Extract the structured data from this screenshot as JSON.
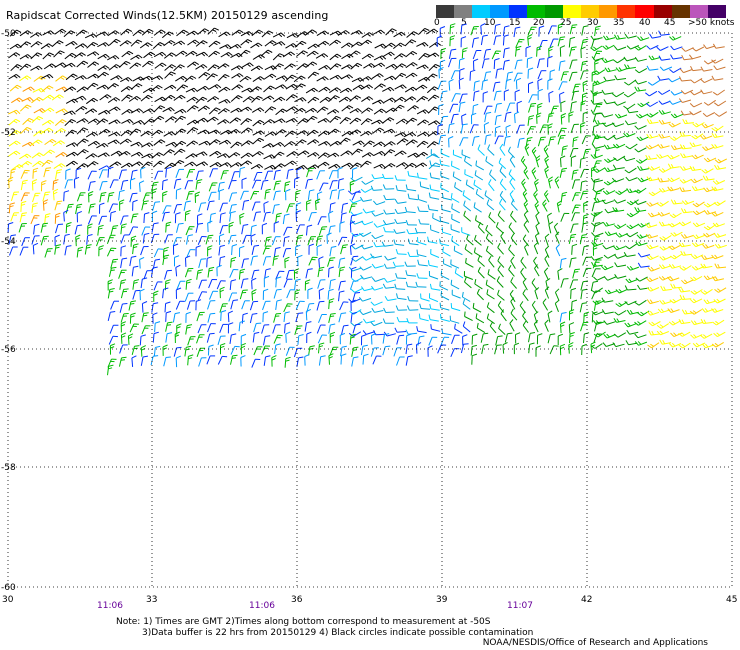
{
  "title": "Rapidscat Corrected Winds(12.5KM) 20150129 ascending",
  "legend": {
    "labels": [
      "0",
      "5",
      "10",
      "15",
      "20",
      "25",
      "30",
      "35",
      "40",
      "45",
      ">50 knots"
    ],
    "colors": [
      "#3a3a3a",
      "#808080",
      "#00ccff",
      "#0099ff",
      "#0033ff",
      "#00bb00",
      "#009900",
      "#ffff00",
      "#ffcc00",
      "#ff9900",
      "#ff3300",
      "#ff0000",
      "#990000",
      "#663300",
      "#bb55bb",
      "#440066"
    ]
  },
  "axes": {
    "lat_labels": [
      "-50",
      "-52",
      "-54",
      "-56",
      "-58",
      "-60"
    ],
    "lon_labels": [
      "30",
      "33",
      "36",
      "39",
      "42",
      "45"
    ]
  },
  "times": [
    "11:06",
    "11:06",
    "11:07"
  ],
  "notes": {
    "line1": "Note: 1) Times are GMT 2)Times along bottom correspond to measurement at -50S",
    "line2": "3)Data buffer is 22 hrs from 20150129 4) Black circles indicate possible contamination"
  },
  "credit": "NOAA/NESDIS/Office of Research and Applications"
}
